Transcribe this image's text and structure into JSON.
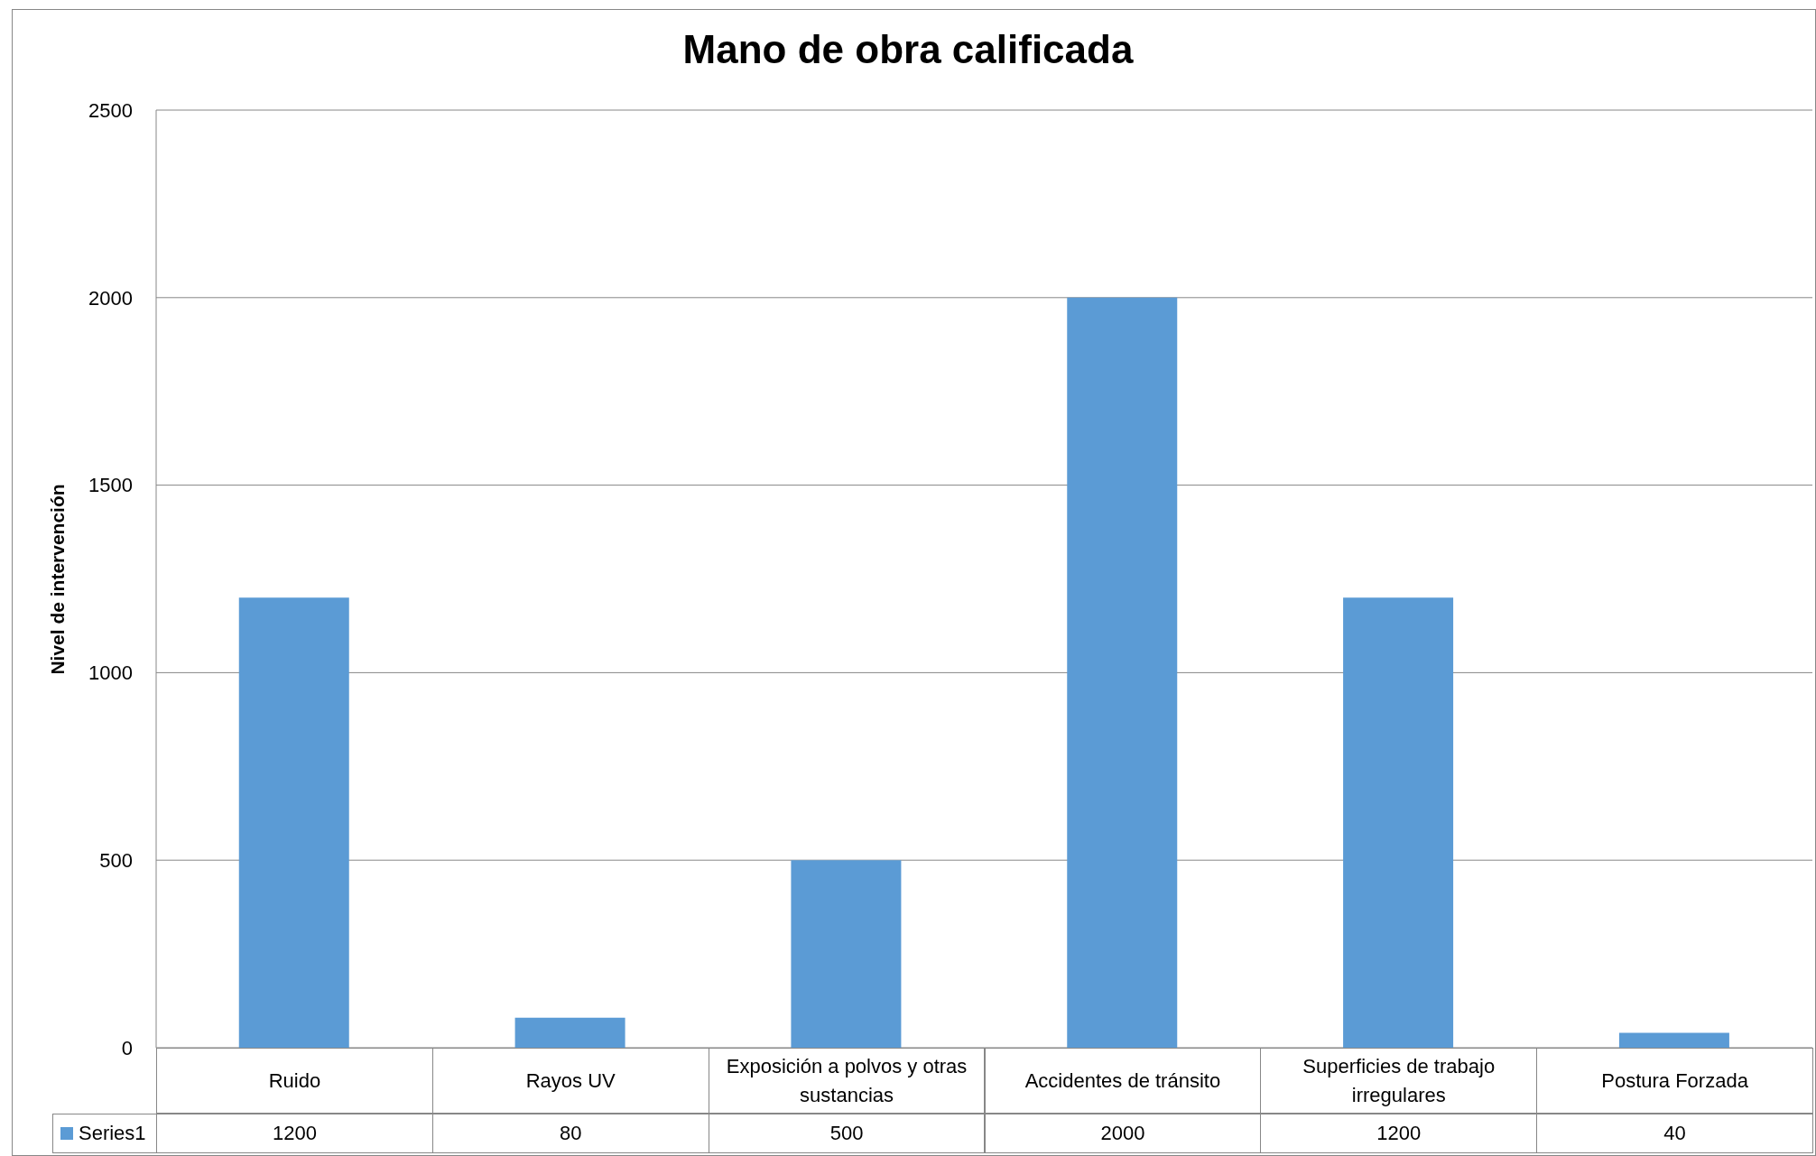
{
  "chart_data": {
    "type": "bar",
    "title": "Mano de obra calificada",
    "ylabel": "Nivel de intervención",
    "categories": [
      "Ruido",
      "Rayos UV",
      "Exposición a polvos y otras sustancias",
      "Accidentes de tránsito",
      "Superficies de trabajo irregulares",
      "Postura Forzada"
    ],
    "series": [
      {
        "name": "Series1",
        "color": "#5b9bd5",
        "values": [
          1200,
          80,
          500,
          2000,
          1200,
          40
        ]
      }
    ],
    "ylim": [
      0,
      2500
    ],
    "yticks": [
      0,
      500,
      1000,
      1500,
      2000,
      2500
    ],
    "grid": "y",
    "data_labels": true
  }
}
